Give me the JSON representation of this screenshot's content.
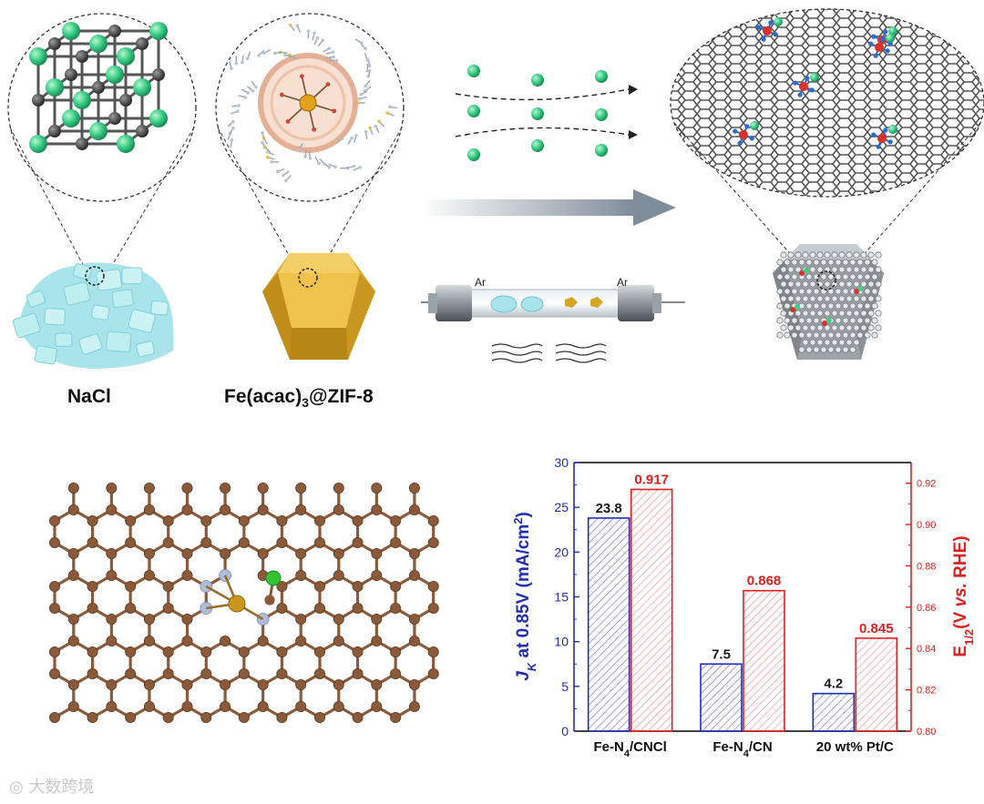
{
  "schematic": {
    "label_nacl": "NaCl",
    "label_zif_prefix": "Fe(acac)",
    "label_zif_sub": "3",
    "label_zif_suffix": "@ZIF-8",
    "tube_label_left": "Ar",
    "tube_label_right": "Ar"
  },
  "watermark": "大数跨境",
  "colors": {
    "left_axis": "#1f2fb0",
    "right_axis": "#e01e1e",
    "graphene_c": "#8a5a3a",
    "n_atom": "#aebbd9",
    "fe_atom": "#c9971e",
    "cl_atom": "#34c234"
  },
  "chart_data": {
    "type": "bar",
    "categories": [
      "Fe-N4/CNCl",
      "Fe-N4/CN",
      "20 wt% Pt/C"
    ],
    "category_labels": [
      {
        "main": "Fe-N",
        "sub": "4",
        "rest": "/CNCl"
      },
      {
        "main": "Fe-N",
        "sub": "4",
        "rest": "/CN"
      },
      {
        "main": "20 wt% Pt/C",
        "sub": "",
        "rest": ""
      }
    ],
    "series": [
      {
        "axis": "left",
        "color": "#1f2fb0",
        "values": [
          23.8,
          7.5,
          4.2
        ],
        "labels": [
          "23.8",
          "7.5",
          "4.2"
        ]
      },
      {
        "axis": "right",
        "color": "#e01e1e",
        "values": [
          0.917,
          0.868,
          0.845
        ],
        "labels": [
          "0.917",
          "0.868",
          "0.845"
        ]
      }
    ],
    "y_left": {
      "min": 0,
      "max": 30,
      "ticks": [
        "0",
        "5",
        "10",
        "15",
        "20",
        "25",
        "30"
      ],
      "label_j": "J",
      "label_k": "K",
      "label_main": " at 0.85V (mA/cm",
      "label_sup": "2",
      "label_end": ")"
    },
    "y_right": {
      "min": 0.8,
      "max": 0.93,
      "ticks": [
        "0.80",
        "0.82",
        "0.84",
        "0.86",
        "0.88",
        "0.90",
        "0.92"
      ],
      "label_e": "E",
      "label_sub": "1/2",
      "label_main": "(V ",
      "label_vs": "vs.",
      "label_end": " RHE)"
    }
  }
}
